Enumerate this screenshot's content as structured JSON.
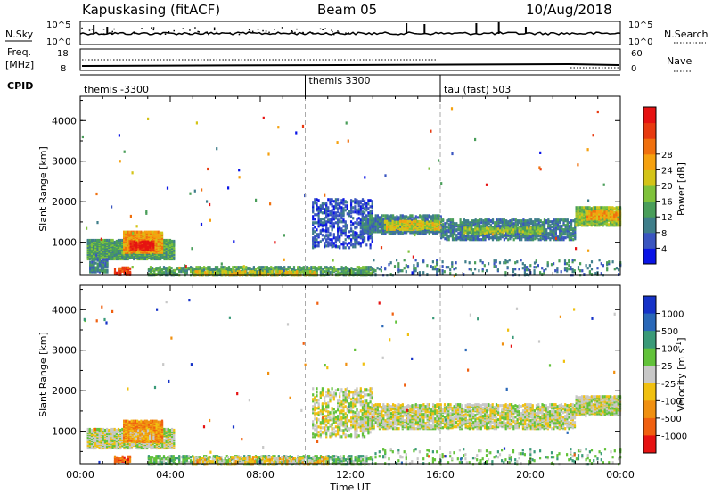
{
  "header": {
    "station": "Kapuskasing (fitACF)",
    "beam": "Beam 05",
    "date": "10/Aug/2018"
  },
  "noise_panel": {
    "left_label": "N.Sky",
    "right_label": "N.Search",
    "left_ticks": [
      "10^5",
      "10^0"
    ],
    "right_ticks": [
      "10^5",
      "10^0"
    ]
  },
  "freq_panel": {
    "left_label_1": "Freq.",
    "left_label_2": "[MHz]",
    "right_label": "Nave",
    "left_ticks": [
      "18",
      "8"
    ],
    "right_ticks": [
      "60",
      "0"
    ]
  },
  "cpid_panel": {
    "label": "CPID",
    "segments": [
      {
        "name": "themis -3300",
        "start_hour": 0
      },
      {
        "name": "themis 3300",
        "start_hour": 10
      },
      {
        "name": "tau (fast) 503",
        "start_hour": 16
      }
    ]
  },
  "chart_data": [
    {
      "type": "heatmap",
      "name": "power",
      "ylabel": "Slant Range [km]",
      "xlabel": "",
      "xlim_hours": [
        0,
        24
      ],
      "ylim": [
        200,
        4600
      ],
      "yticks": [
        1000,
        2000,
        3000,
        4000
      ],
      "colorbar": {
        "label": "Power [dB]",
        "ticks": [
          "4",
          "8",
          "12",
          "16",
          "20",
          "24",
          "28"
        ],
        "colors": [
          "#0a14e6",
          "#3a55c0",
          "#3f7e8a",
          "#4a9e5a",
          "#7fc23b",
          "#d4c418",
          "#f5a10f",
          "#f0700e",
          "#e83a10",
          "#e61212"
        ]
      },
      "regions": [
        {
          "t0": 0.3,
          "t1": 4.2,
          "r0": 620,
          "r1": 1100,
          "level": 3,
          "density": 0.85
        },
        {
          "t0": 1.9,
          "t1": 3.6,
          "r0": 780,
          "r1": 1300,
          "level": 6,
          "density": 0.9
        },
        {
          "t0": 2.2,
          "t1": 3.3,
          "r0": 850,
          "r1": 1050,
          "level": 9,
          "density": 0.7
        },
        {
          "t0": 0.4,
          "t1": 1.2,
          "r0": 300,
          "r1": 620,
          "level": 2,
          "density": 0.6
        },
        {
          "t0": 1.5,
          "t1": 2.2,
          "r0": 250,
          "r1": 420,
          "level": 8,
          "density": 0.5
        },
        {
          "t0": 3.0,
          "t1": 13.0,
          "r0": 220,
          "r1": 420,
          "level": 3,
          "density": 0.55
        },
        {
          "t0": 5.0,
          "t1": 10.5,
          "r0": 220,
          "r1": 330,
          "level": 5,
          "density": 0.45
        },
        {
          "t0": 10.3,
          "t1": 13.0,
          "r0": 900,
          "r1": 2100,
          "level": 1,
          "density": 0.3
        },
        {
          "t0": 12.5,
          "t1": 16.0,
          "r0": 1250,
          "r1": 1700,
          "level": 2,
          "density": 0.6
        },
        {
          "t0": 13.5,
          "t1": 16.0,
          "r0": 1350,
          "r1": 1550,
          "level": 5,
          "density": 0.6
        },
        {
          "t0": 16.0,
          "t1": 22.0,
          "r0": 1100,
          "r1": 1600,
          "level": 2,
          "density": 0.55
        },
        {
          "t0": 17.0,
          "t1": 20.5,
          "r0": 1250,
          "r1": 1400,
          "level": 4,
          "density": 0.55
        },
        {
          "t0": 22.0,
          "t1": 24.0,
          "r0": 1450,
          "r1": 1900,
          "level": 4,
          "density": 0.8
        },
        {
          "t0": 22.5,
          "t1": 24.0,
          "r0": 1600,
          "r1": 1800,
          "level": 6,
          "density": 0.6
        },
        {
          "t0": 13.0,
          "t1": 24.0,
          "r0": 220,
          "r1": 600,
          "level": 2,
          "density": 0.1
        }
      ]
    },
    {
      "type": "heatmap",
      "name": "velocity",
      "ylabel": "Slant Range [km]",
      "xlabel": "Time UT",
      "xlim_hours": [
        0,
        24
      ],
      "ylim": [
        200,
        4600
      ],
      "yticks": [
        1000,
        2000,
        3000,
        4000
      ],
      "xticks": [
        "00:00",
        "04:00",
        "08:00",
        "12:00",
        "16:00",
        "20:00",
        "00:00"
      ],
      "colorbar": {
        "label": "Velocity [m s^-1]",
        "ticks": [
          "1000",
          "500",
          "100",
          "25",
          "-25",
          "-100",
          "-500",
          "-1000"
        ],
        "colors": [
          "#1633c8",
          "#2a68b8",
          "#3a9a78",
          "#62c23a",
          "#c8c8c8",
          "#f0c010",
          "#f09010",
          "#f06010",
          "#e61212"
        ]
      },
      "regions": [
        {
          "t0": 0.3,
          "t1": 4.2,
          "r0": 620,
          "r1": 1100,
          "level": 4,
          "density": 0.8
        },
        {
          "t0": 1.9,
          "t1": 3.6,
          "r0": 780,
          "r1": 1300,
          "level": 6,
          "density": 0.9
        },
        {
          "t0": 2.2,
          "t1": 3.3,
          "r0": 850,
          "r1": 1050,
          "level": 5,
          "density": 0.7
        },
        {
          "t0": 1.5,
          "t1": 2.2,
          "r0": 250,
          "r1": 420,
          "level": 7,
          "density": 0.5
        },
        {
          "t0": 3.0,
          "t1": 13.0,
          "r0": 220,
          "r1": 420,
          "level": 3,
          "density": 0.45
        },
        {
          "t0": 5.0,
          "t1": 11.0,
          "r0": 220,
          "r1": 400,
          "level": 5,
          "density": 0.3
        },
        {
          "t0": 10.3,
          "t1": 13.0,
          "r0": 900,
          "r1": 2100,
          "level": 4,
          "density": 0.3
        },
        {
          "t0": 12.5,
          "t1": 22.0,
          "r0": 1100,
          "r1": 1700,
          "level": 4,
          "density": 0.55
        },
        {
          "t0": 22.0,
          "t1": 24.0,
          "r0": 1450,
          "r1": 1900,
          "level": 4,
          "density": 0.8
        },
        {
          "t0": 13.0,
          "t1": 24.0,
          "r0": 220,
          "r1": 600,
          "level": 3,
          "density": 0.08
        }
      ]
    }
  ]
}
